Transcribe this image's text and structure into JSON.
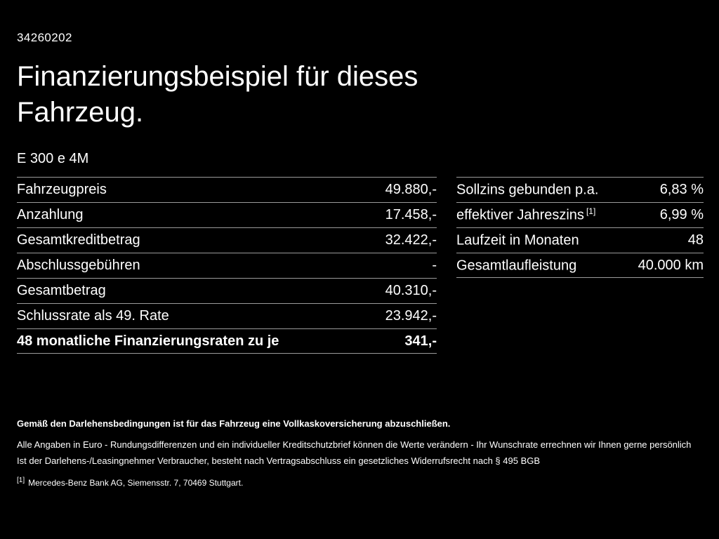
{
  "page": {
    "id": "34260202",
    "title": "Finanzierungsbeispiel für dieses Fahrzeug.",
    "model": "E 300 e 4M"
  },
  "colors": {
    "background": "#000000",
    "text": "#ffffff",
    "divider": "#9b9b9b"
  },
  "left_table": {
    "rows": [
      {
        "label": "Fahrzeugpreis",
        "value": "49.880,-"
      },
      {
        "label": "Anzahlung",
        "value": "17.458,-"
      },
      {
        "label": "Gesamtkreditbetrag",
        "value": "32.422,-"
      },
      {
        "label": "Abschlussgebühren",
        "value": "-"
      },
      {
        "label": "Gesamtbetrag",
        "value": "40.310,-"
      },
      {
        "label": "Schlussrate als 49. Rate",
        "value": "23.942,-"
      },
      {
        "label": "48 monatliche Finanzierungsraten zu je",
        "value": "341,-",
        "bold": true
      }
    ]
  },
  "right_table": {
    "rows": [
      {
        "label": "Sollzins gebunden p.a.",
        "value": "6,83 %"
      },
      {
        "label": "effektiver Jahreszins",
        "sup": "[1]",
        "value": "6,99 %"
      },
      {
        "label": "Laufzeit in Monaten",
        "value": "48"
      },
      {
        "label": "Gesamtlaufleistung",
        "value": "40.000 km"
      }
    ]
  },
  "footer": {
    "bold_note": "Gemäß den Darlehensbedingungen ist für das Fahrzeug eine Vollkaskoversicherung abzuschließen.",
    "line1": "Alle Angaben in Euro - Rundungsdifferenzen und ein individueller Kreditschutzbrief können die Werte verändern - Ihr Wunschrate errechnen wir Ihnen gerne persönlich",
    "line2": "Ist der Darlehens-/Leasingnehmer Verbraucher, besteht nach Vertragsabschluss ein gesetzliches Widerrufsrecht nach § 495 BGB",
    "footnote_marker": "[1]",
    "footnote_text": "Mercedes-Benz Bank AG, Siemensstr. 7, 70469 Stuttgart."
  }
}
